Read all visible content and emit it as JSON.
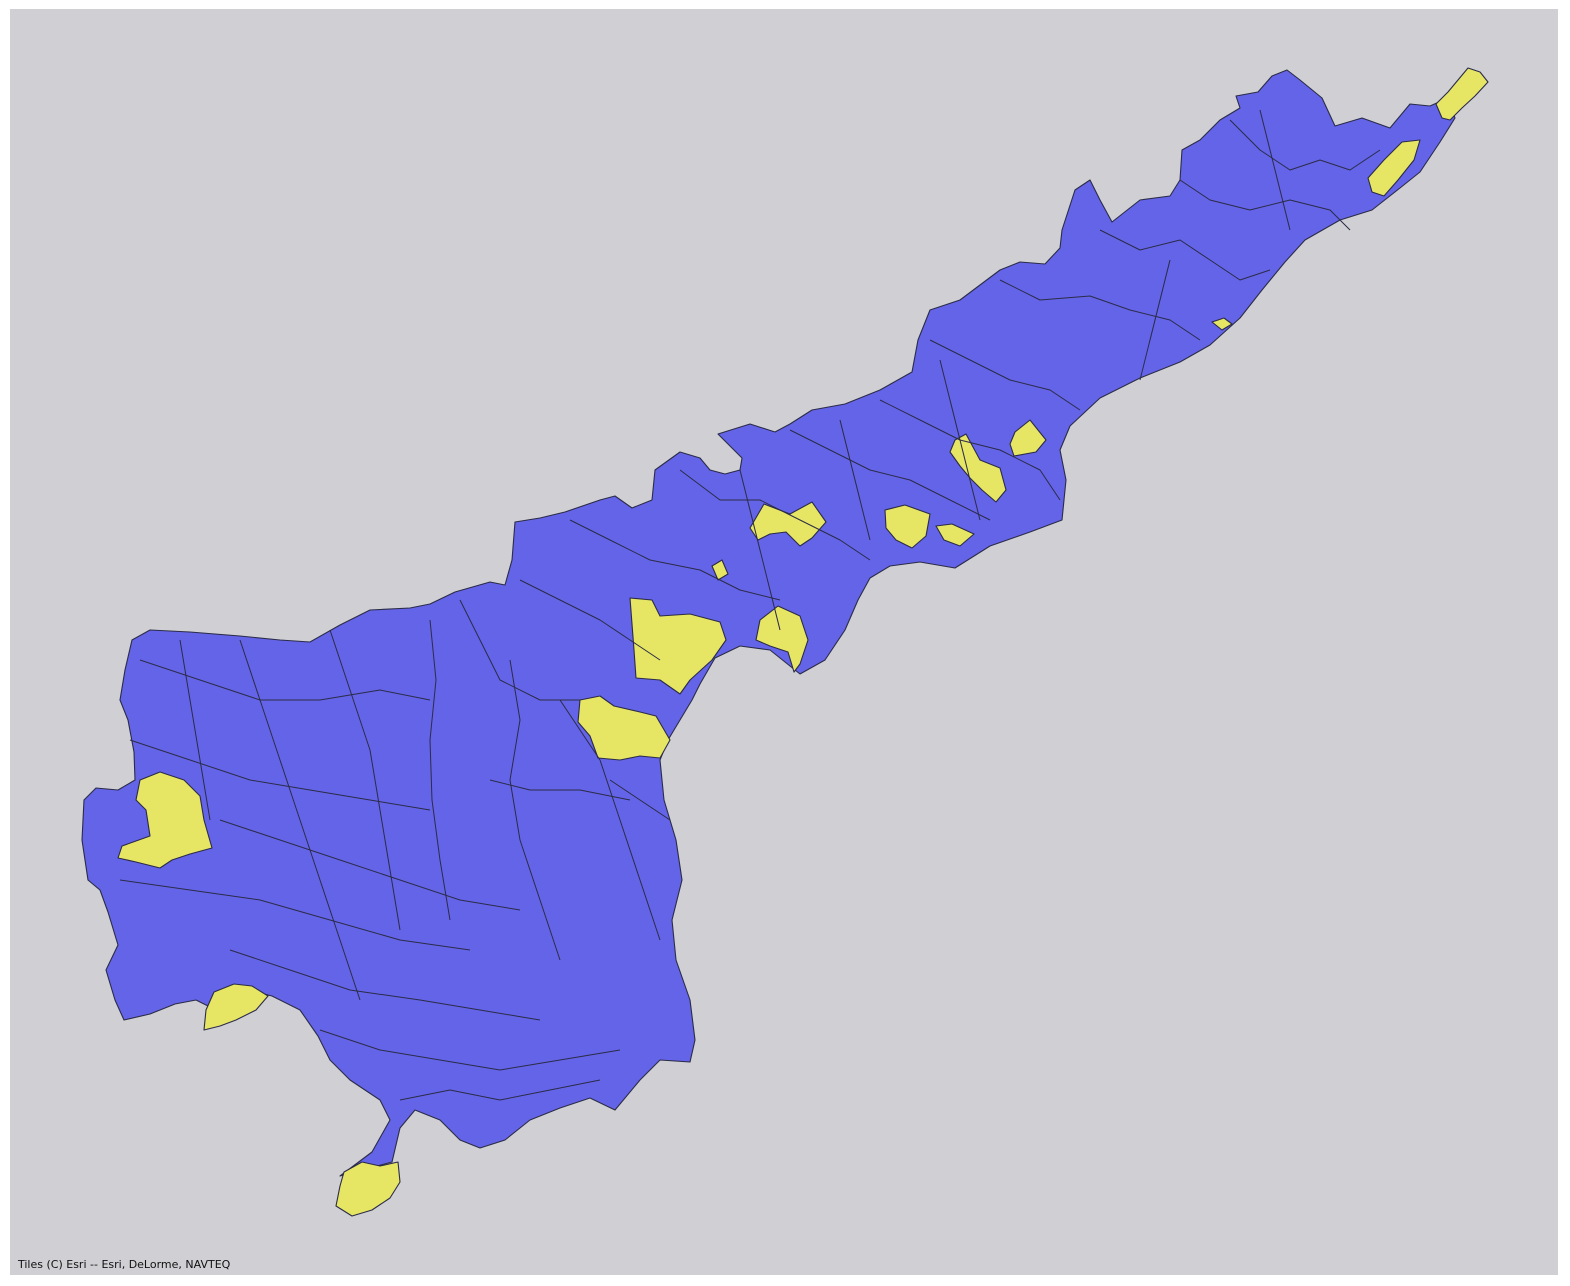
{
  "map": {
    "attribution": "Tiles (C) Esri -- Esri, DeLorme, NAVTEQ",
    "colors": {
      "background": "#cfcfd4",
      "region_a": "#6464e8",
      "region_b": "#e6e664",
      "border": "#2b2b48"
    }
  }
}
